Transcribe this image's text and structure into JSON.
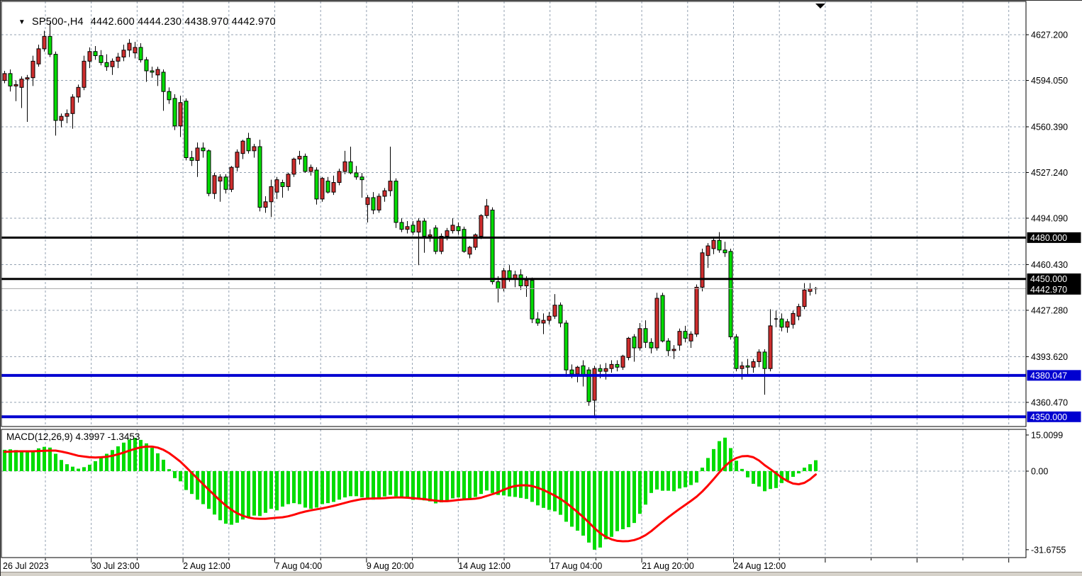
{
  "header": {
    "dropdown_glyph": "▼",
    "symbol_period": "SP500-,H4",
    "ohlc_text": "4442.600 4444.230 4438.970 4442.970",
    "open": "4442.600",
    "high": "4444.230",
    "low": "4438.970",
    "close": "4442.970"
  },
  "indicator_header": {
    "label": "MACD(12,26,9) 4.3997 -1.3453",
    "name": "MACD",
    "params": "12,26,9",
    "macd_value": "4.3997",
    "signal_value": "-1.3453"
  },
  "price_axis": {
    "tick_labels": [
      "4627.200",
      "4594.050",
      "4560.390",
      "4527.240",
      "4494.090",
      "4460.430",
      "4427.280",
      "4393.620",
      "4360.470"
    ],
    "badges": [
      {
        "text": "4480.000",
        "price": 4480.0,
        "bg": "#000000",
        "fg": "#ffffff"
      },
      {
        "text": "4450.000",
        "price": 4450.0,
        "bg": "#000000",
        "fg": "#ffffff"
      },
      {
        "text": "4442.970",
        "price": 4442.97,
        "bg": "#000000",
        "fg": "#ffffff"
      },
      {
        "text": "4380.047",
        "price": 4380.047,
        "bg": "#0000d0",
        "fg": "#ffffff"
      },
      {
        "text": "4350.000",
        "price": 4350.0,
        "bg": "#0000d0",
        "fg": "#ffffff"
      }
    ],
    "macd_scale_labels": [
      "15.0099",
      "0.00",
      "-31.6755"
    ]
  },
  "time_axis": {
    "labels": [
      "26 Jul 2023",
      "30 Jul 23:00",
      "2 Aug 12:00",
      "7 Aug 04:00",
      "9 Aug 20:00",
      "14 Aug 12:00",
      "17 Aug 04:00",
      "21 Aug 20:00",
      "24 Aug 12:00"
    ]
  },
  "chart_data": {
    "type": "candlestick",
    "title": "SP500-,H4",
    "symbol": "SP500-",
    "timeframe": "H4",
    "legend_position": "top-left",
    "grid": true,
    "current_bar": {
      "open": 4442.6,
      "high": 4444.23,
      "low": 4438.97,
      "close": 4442.97
    },
    "y_axis": {
      "ticks": [
        4627.2,
        4594.05,
        4560.39,
        4527.24,
        4494.09,
        4460.43,
        4427.28,
        4393.62,
        4360.47
      ],
      "range": [
        4343.5,
        4650.8
      ]
    },
    "x_axis": {
      "labels": [
        "26 Jul 2023",
        "30 Jul 23:00",
        "2 Aug 12:00",
        "7 Aug 04:00",
        "9 Aug 20:00",
        "14 Aug 12:00",
        "17 Aug 04:00",
        "21 Aug 20:00",
        "24 Aug 12:00"
      ]
    },
    "levels": [
      {
        "price": 4480.0,
        "color": "#000000",
        "width": 3
      },
      {
        "price": 4450.0,
        "color": "#000000",
        "width": 3
      },
      {
        "price": 4380.047,
        "color": "#0000d0",
        "width": 4
      },
      {
        "price": 4350.0,
        "color": "#0000d0",
        "width": 4
      }
    ],
    "bid_price": 4442.97,
    "colors": {
      "bull": "#ce2d2d",
      "bear": "#00dc00",
      "wick": "#000000",
      "grid": "#93a1b1",
      "macd_histogram": "#00dc00",
      "macd_signal": "#ff0000",
      "bid_line": "#a8a8a8",
      "badge_black": "#000000",
      "badge_blue": "#0000d0"
    },
    "candles": [
      [
        4594,
        4601,
        4592,
        4599
      ],
      [
        4599,
        4602,
        4586,
        4590
      ],
      [
        4590,
        4594,
        4579,
        4591
      ],
      [
        4589,
        4597,
        4574,
        4595
      ],
      [
        4595,
        4598,
        4564,
        4596
      ],
      [
        4596,
        4612,
        4590,
        4608
      ],
      [
        4606,
        4620,
        4604,
        4617
      ],
      [
        4617,
        4630,
        4615,
        4626
      ],
      [
        4626,
        4636,
        4611,
        4613
      ],
      [
        4613,
        4615,
        4554,
        4565
      ],
      [
        4565,
        4570,
        4560,
        4568
      ],
      [
        4568,
        4573,
        4563,
        4570
      ],
      [
        4570,
        4584,
        4559,
        4582
      ],
      [
        4582,
        4591,
        4578,
        4589
      ],
      [
        4589,
        4612,
        4587,
        4608
      ],
      [
        4608,
        4618,
        4603,
        4615
      ],
      [
        4615,
        4619,
        4609,
        4612
      ],
      [
        4612,
        4616,
        4605,
        4607
      ],
      [
        4607,
        4613,
        4601,
        4604
      ],
      [
        4604,
        4610,
        4598,
        4608
      ],
      [
        4608,
        4614,
        4603,
        4611
      ],
      [
        4611,
        4620,
        4608,
        4616
      ],
      [
        4616,
        4624,
        4611,
        4621
      ],
      [
        4614,
        4622,
        4610,
        4618
      ],
      [
        4618,
        4621,
        4607,
        4609
      ],
      [
        4609,
        4611,
        4593,
        4601
      ],
      [
        4601,
        4604,
        4596,
        4600
      ],
      [
        4598,
        4604,
        4590,
        4602
      ],
      [
        4600,
        4602,
        4572,
        4586
      ],
      [
        4586,
        4589,
        4577,
        4580
      ],
      [
        4581,
        4584,
        4558,
        4561
      ],
      [
        4561,
        4583,
        4553,
        4578
      ],
      [
        4579,
        4581,
        4536,
        4538
      ],
      [
        4538,
        4543,
        4532,
        4536
      ],
      [
        4536,
        4549,
        4524,
        4545
      ],
      [
        4545,
        4549,
        4538,
        4543
      ],
      [
        4543,
        4544,
        4510,
        4512
      ],
      [
        4512,
        4527,
        4508,
        4525
      ],
      [
        4521,
        4526,
        4506,
        4524
      ],
      [
        4524,
        4526,
        4512,
        4515
      ],
      [
        4515,
        4532,
        4513,
        4531
      ],
      [
        4531,
        4544,
        4528,
        4542
      ],
      [
        4541,
        4551,
        4537,
        4550
      ],
      [
        4552,
        4556,
        4541,
        4543
      ],
      [
        4543,
        4548,
        4538,
        4546
      ],
      [
        4546,
        4551,
        4499,
        4502
      ],
      [
        4502,
        4510,
        4498,
        4506
      ],
      [
        4506,
        4522,
        4495,
        4517
      ],
      [
        4513,
        4524,
        4508,
        4522
      ],
      [
        4520,
        4522,
        4509,
        4517
      ],
      [
        4517,
        4527,
        4514,
        4526
      ],
      [
        4526,
        4538,
        4524,
        4537
      ],
      [
        4537,
        4543,
        4533,
        4539
      ],
      [
        4539,
        4541,
        4527,
        4528
      ],
      [
        4528,
        4533,
        4525,
        4531
      ],
      [
        4529,
        4531,
        4504,
        4508
      ],
      [
        4508,
        4524,
        4506,
        4523
      ],
      [
        4521,
        4524,
        4512,
        4513
      ],
      [
        4513,
        4525,
        4511,
        4520
      ],
      [
        4520,
        4530,
        4518,
        4528
      ],
      [
        4528,
        4543,
        4526,
        4535
      ],
      [
        4535,
        4546,
        4526,
        4527
      ],
      [
        4527,
        4532,
        4522,
        4524
      ],
      [
        4524,
        4527,
        4509,
        4522
      ],
      [
        4504,
        4511,
        4491,
        4509
      ],
      [
        4509,
        4513,
        4497,
        4500
      ],
      [
        4500,
        4512,
        4498,
        4510
      ],
      [
        4510,
        4516,
        4506,
        4514
      ],
      [
        4514,
        4546,
        4510,
        4521
      ],
      [
        4521,
        4523,
        4487,
        4491
      ],
      [
        4491,
        4494,
        4484,
        4486
      ],
      [
        4486,
        4492,
        4483,
        4488
      ],
      [
        4489,
        4492,
        4482,
        4484
      ],
      [
        4484,
        4494,
        4460,
        4492
      ],
      [
        4492,
        4494,
        4469,
        4481
      ],
      [
        4481,
        4486,
        4477,
        4482
      ],
      [
        4487,
        4489,
        4468,
        4470
      ],
      [
        4470,
        4483,
        4468,
        4481
      ],
      [
        4481,
        4487,
        4478,
        4485
      ],
      [
        4485,
        4494,
        4483,
        4489
      ],
      [
        4488,
        4491,
        4482,
        4485
      ],
      [
        4486,
        4488,
        4469,
        4470
      ],
      [
        4468,
        4474,
        4465,
        4473
      ],
      [
        4473,
        4483,
        4471,
        4482
      ],
      [
        4481,
        4497,
        4479,
        4496
      ],
      [
        4496,
        4508,
        4494,
        4503
      ],
      [
        4500,
        4502,
        4446,
        4448
      ],
      [
        4448,
        4452,
        4433,
        4443
      ],
      [
        4443,
        4458,
        4441,
        4456
      ],
      [
        4456,
        4460,
        4448,
        4450
      ],
      [
        4450,
        4456,
        4444,
        4453
      ],
      [
        4453,
        4457,
        4442,
        4445
      ],
      [
        4445,
        4452,
        4437,
        4449
      ],
      [
        4449,
        4451,
        4418,
        4421
      ],
      [
        4421,
        4426,
        4416,
        4418
      ],
      [
        4418,
        4425,
        4410,
        4420
      ],
      [
        4420,
        4426,
        4417,
        4423
      ],
      [
        4423,
        4439,
        4421,
        4431
      ],
      [
        4431,
        4433,
        4415,
        4418
      ],
      [
        4418,
        4420,
        4379,
        4384
      ],
      [
        4384,
        4388,
        4378,
        4381
      ],
      [
        4381,
        4387,
        4375,
        4386
      ],
      [
        4387,
        4391,
        4372,
        4380
      ],
      [
        4384,
        4386,
        4358,
        4361
      ],
      [
        4362,
        4387,
        4349,
        4385
      ],
      [
        4385,
        4388,
        4378,
        4383
      ],
      [
        4383,
        4389,
        4377,
        4385
      ],
      [
        4385,
        4391,
        4382,
        4388
      ],
      [
        4388,
        4391,
        4383,
        4386
      ],
      [
        4386,
        4395,
        4384,
        4394
      ],
      [
        4393,
        4408,
        4391,
        4407
      ],
      [
        4408,
        4410,
        4390,
        4400
      ],
      [
        4400,
        4418,
        4398,
        4414
      ],
      [
        4414,
        4420,
        4400,
        4404
      ],
      [
        4404,
        4407,
        4396,
        4400
      ],
      [
        4400,
        4440,
        4398,
        4436
      ],
      [
        4438,
        4440,
        4404,
        4405
      ],
      [
        4405,
        4407,
        4394,
        4398
      ],
      [
        4398,
        4402,
        4392,
        4399
      ],
      [
        4402,
        4414,
        4398,
        4412
      ],
      [
        4412,
        4416,
        4404,
        4407
      ],
      [
        4405,
        4412,
        4400,
        4410
      ],
      [
        4410,
        4446,
        4408,
        4444
      ],
      [
        4444,
        4472,
        4441,
        4469
      ],
      [
        4467,
        4476,
        4458,
        4474
      ],
      [
        4472,
        4480,
        4468,
        4478
      ],
      [
        4478,
        4484,
        4469,
        4471
      ],
      [
        4471,
        4477,
        4466,
        4469
      ],
      [
        4470,
        4472,
        4406,
        4408
      ],
      [
        4408,
        4410,
        4383,
        4385
      ],
      [
        4385,
        4390,
        4377,
        4387
      ],
      [
        4387,
        4392,
        4380,
        4386
      ],
      [
        4386,
        4392,
        4382,
        4390
      ],
      [
        4390,
        4399,
        4386,
        4397
      ],
      [
        4397,
        4399,
        4366,
        4385
      ],
      [
        4385,
        4428,
        4383,
        4416
      ],
      [
        4421,
        4427,
        4415,
        4421
      ],
      [
        4421,
        4425,
        4412,
        4415
      ],
      [
        4415,
        4421,
        4411,
        4419
      ],
      [
        4417,
        4427,
        4414,
        4425
      ],
      [
        4423,
        4432,
        4420,
        4430
      ],
      [
        4430,
        4447,
        4428,
        4442
      ],
      [
        4441,
        4447,
        4438,
        4443
      ],
      [
        4442.6,
        4444.23,
        4438.97,
        4442.97
      ]
    ],
    "macd": {
      "label": "MACD(12,26,9)",
      "current_macd": 4.3997,
      "current_signal": -1.3453,
      "scale": {
        "max": 15.0099,
        "zero": 0.0,
        "min": -31.6755
      },
      "histogram": [
        8.6,
        8.8,
        8.5,
        8.2,
        8.0,
        8.4,
        9.2,
        9.8,
        9.5,
        7.0,
        4.5,
        2.8,
        1.8,
        1.0,
        1.6,
        2.6,
        4.0,
        5.5,
        7.0,
        8.5,
        10.0,
        11.5,
        12.8,
        13.4,
        12.6,
        11.2,
        9.4,
        7.2,
        4.6,
        0.8,
        -2.8,
        -4.1,
        -7.6,
        -9.2,
        -11.5,
        -13.3,
        -15.2,
        -17.5,
        -19.8,
        -21.2,
        -21.6,
        -20.8,
        -19.5,
        -18.5,
        -17.9,
        -18.1,
        -16.8,
        -15.2,
        -15.8,
        -14.3,
        -13.3,
        -12.9,
        -13.3,
        -14.7,
        -15.2,
        -14.7,
        -13.3,
        -12.9,
        -12.4,
        -11.5,
        -10.6,
        -10.1,
        -10.1,
        -10.6,
        -11.5,
        -11.5,
        -11.1,
        -10.2,
        -9.6,
        -10.2,
        -10.8,
        -11.0,
        -11.6,
        -11.2,
        -11.8,
        -12.2,
        -13.0,
        -12.6,
        -11.8,
        -11.0,
        -10.6,
        -11.0,
        -11.2,
        -10.4,
        -9.2,
        -7.8,
        -8.8,
        -9.6,
        -9.8,
        -10.2,
        -10.4,
        -10.8,
        -11.2,
        -12.4,
        -13.8,
        -14.8,
        -15.6,
        -16.2,
        -17.6,
        -20.4,
        -22.4,
        -24.0,
        -26.0,
        -28.8,
        -31.68,
        -30.8,
        -27.5,
        -26.5,
        -24.2,
        -23.4,
        -22.6,
        -20.9,
        -17.2,
        -13.5,
        -8.8,
        -7.4,
        -7.9,
        -7.9,
        -8.1,
        -7.0,
        -6.5,
        -5.6,
        -4.6,
        1.4,
        5.3,
        8.9,
        12.1,
        13.5,
        9.3,
        4.2,
        0.9,
        -2.5,
        -5.1,
        -6.2,
        -8.1,
        -7.2,
        -6.8,
        -4.8,
        -3.7,
        -2.3,
        -0.9,
        1.4,
        2.8,
        4.3997
      ],
      "signal_line": [
        7.8,
        7.9,
        8.0,
        8.0,
        8.0,
        8.0,
        8.1,
        8.2,
        8.3,
        8.3,
        7.9,
        7.4,
        6.8,
        6.2,
        5.9,
        5.6,
        5.5,
        5.6,
        5.8,
        6.2,
        6.8,
        7.5,
        8.3,
        9.0,
        9.6,
        9.9,
        9.9,
        9.5,
        8.6,
        7.3,
        5.6,
        3.8,
        1.6,
        -0.7,
        -3.0,
        -5.3,
        -7.5,
        -9.7,
        -11.9,
        -13.9,
        -15.6,
        -17.0,
        -18.0,
        -18.7,
        -19.1,
        -19.2,
        -19.2,
        -19.0,
        -18.8,
        -18.6,
        -18.2,
        -17.6,
        -16.9,
        -16.3,
        -15.8,
        -15.4,
        -15.0,
        -14.5,
        -14.0,
        -13.4,
        -12.8,
        -12.2,
        -11.7,
        -11.3,
        -11.1,
        -11.0,
        -11.0,
        -10.9,
        -10.7,
        -10.6,
        -10.6,
        -10.7,
        -10.9,
        -11.1,
        -11.3,
        -11.6,
        -11.9,
        -12.1,
        -12.1,
        -11.9,
        -11.6,
        -11.4,
        -11.3,
        -11.1,
        -10.7,
        -10.0,
        -9.3,
        -8.5,
        -7.5,
        -6.6,
        -6.0,
        -5.7,
        -5.7,
        -6.0,
        -6.7,
        -7.6,
        -8.7,
        -9.9,
        -11.2,
        -12.8,
        -14.6,
        -16.5,
        -18.5,
        -20.7,
        -23.0,
        -25.0,
        -26.5,
        -27.5,
        -28.1,
        -28.3,
        -28.2,
        -27.8,
        -27.0,
        -25.8,
        -24.2,
        -22.3,
        -20.4,
        -18.6,
        -16.9,
        -15.2,
        -13.6,
        -12.0,
        -10.3,
        -8.2,
        -5.8,
        -3.2,
        -0.5,
        2.0,
        4.0,
        5.3,
        6.0,
        6.1,
        5.6,
        4.3,
        2.4,
        0.8,
        -0.9,
        -2.6,
        -4.0,
        -5.0,
        -5.3,
        -4.7,
        -3.3,
        -1.3453
      ]
    }
  }
}
